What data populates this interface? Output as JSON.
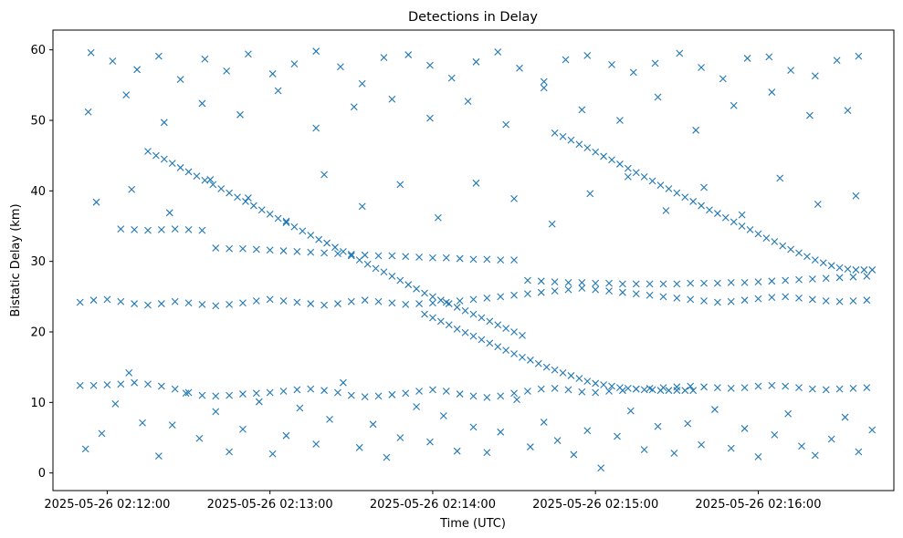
{
  "chart_data": {
    "type": "scatter",
    "title": "Detections in Delay",
    "xlabel": "Time (UTC)",
    "ylabel": "Bistatic Delay (km)",
    "x_type": "time",
    "xlim": [
      "2025-05-26 02:11:40",
      "2025-05-26 02:16:50"
    ],
    "ylim": [
      -2.5,
      62.8
    ],
    "xticks": [
      {
        "value": "2025-05-26 02:12:00",
        "label": "2025-05-26 02:12:00"
      },
      {
        "value": "2025-05-26 02:13:00",
        "label": "2025-05-26 02:13:00"
      },
      {
        "value": "2025-05-26 02:14:00",
        "label": "2025-05-26 02:14:00"
      },
      {
        "value": "2025-05-26 02:15:00",
        "label": "2025-05-26 02:15:00"
      },
      {
        "value": "2025-05-26 02:16:00",
        "label": "2025-05-26 02:16:00"
      }
    ],
    "yticks": [
      0,
      10,
      20,
      30,
      40,
      50,
      60
    ],
    "marker": "x",
    "color": "#1f77b4",
    "grid": false,
    "legend": "none",
    "series": [
      {
        "name": "",
        "x": [
          "02:12:15",
          "02:12:18",
          "02:12:21",
          "02:12:24",
          "02:12:27",
          "02:12:30",
          "02:12:33",
          "02:12:36",
          "02:12:39",
          "02:12:42",
          "02:12:45",
          "02:12:48",
          "02:12:51",
          "02:12:54",
          "02:12:57",
          "02:13:00",
          "02:13:03",
          "02:13:06",
          "02:13:09",
          "02:13:12",
          "02:13:15",
          "02:13:18",
          "02:13:21",
          "02:13:24",
          "02:13:27",
          "02:13:30",
          "02:13:33",
          "02:13:36",
          "02:13:39",
          "02:13:42",
          "02:13:45",
          "02:13:48",
          "02:13:51",
          "02:13:54",
          "02:13:57",
          "02:14:00",
          "02:14:03",
          "02:14:06",
          "02:14:09",
          "02:14:12",
          "02:14:15",
          "02:14:18",
          "02:14:21",
          "02:14:24",
          "02:14:27",
          "02:14:30",
          "02:14:33",
          "02:13:57",
          "02:14:00",
          "02:14:03",
          "02:14:06",
          "02:14:09",
          "02:14:12",
          "02:14:15",
          "02:14:18",
          "02:14:21",
          "02:14:24",
          "02:14:27",
          "02:14:30",
          "02:14:33",
          "02:14:36",
          "02:14:39",
          "02:14:42",
          "02:14:45",
          "02:14:48",
          "02:14:51",
          "02:14:54",
          "02:14:57",
          "02:15:00",
          "02:15:03",
          "02:15:06",
          "02:15:09",
          "02:15:12",
          "02:15:15",
          "02:15:18",
          "02:15:21",
          "02:15:24",
          "02:15:27",
          "02:15:30",
          "02:15:33",
          "02:15:36",
          "02:14:45",
          "02:14:48",
          "02:14:51",
          "02:14:54",
          "02:14:57",
          "02:15:00",
          "02:15:03",
          "02:15:06",
          "02:15:09",
          "02:15:12",
          "02:15:15",
          "02:15:18",
          "02:15:21",
          "02:15:24",
          "02:15:27",
          "02:15:30",
          "02:15:33",
          "02:15:36",
          "02:15:39",
          "02:15:42",
          "02:15:45",
          "02:15:48",
          "02:15:51",
          "02:15:54",
          "02:15:57",
          "02:16:00",
          "02:16:03",
          "02:16:06",
          "02:16:09",
          "02:16:12",
          "02:16:15",
          "02:16:18",
          "02:16:21",
          "02:16:24",
          "02:16:27",
          "02:16:30",
          "02:16:33",
          "02:16:36",
          "02:16:39",
          "02:16:42",
          "02:11:50",
          "02:11:55",
          "02:12:00",
          "02:12:05",
          "02:12:10",
          "02:12:15",
          "02:12:20",
          "02:12:25",
          "02:12:30",
          "02:12:35",
          "02:12:40",
          "02:12:45",
          "02:12:50",
          "02:12:55",
          "02:13:00",
          "02:13:05",
          "02:13:10",
          "02:13:15",
          "02:13:20",
          "02:13:25",
          "02:13:30",
          "02:13:35",
          "02:13:40",
          "02:13:45",
          "02:13:50",
          "02:13:55",
          "02:14:00",
          "02:14:05",
          "02:14:10",
          "02:14:15",
          "02:14:20",
          "02:14:25",
          "02:14:30",
          "02:14:35",
          "02:14:40",
          "02:14:45",
          "02:14:50",
          "02:14:55",
          "02:15:00",
          "02:15:05",
          "02:15:10",
          "02:15:15",
          "02:15:20",
          "02:15:25",
          "02:15:30",
          "02:15:35",
          "02:15:40",
          "02:15:45",
          "02:15:50",
          "02:15:55",
          "02:16:00",
          "02:16:05",
          "02:16:10",
          "02:16:15",
          "02:16:20",
          "02:16:25",
          "02:16:30",
          "02:16:35",
          "02:16:40",
          "02:11:50",
          "02:11:55",
          "02:12:00",
          "02:12:05",
          "02:12:10",
          "02:12:15",
          "02:12:20",
          "02:12:25",
          "02:12:30",
          "02:12:35",
          "02:12:40",
          "02:12:45",
          "02:12:50",
          "02:12:55",
          "02:13:00",
          "02:13:05",
          "02:13:10",
          "02:13:15",
          "02:13:20",
          "02:13:25",
          "02:13:30",
          "02:13:35",
          "02:13:40",
          "02:13:45",
          "02:13:50",
          "02:13:55",
          "02:14:00",
          "02:14:05",
          "02:14:10",
          "02:14:15",
          "02:14:20",
          "02:14:25",
          "02:14:30",
          "02:14:35",
          "02:14:40",
          "02:14:45",
          "02:14:50",
          "02:14:55",
          "02:15:00",
          "02:15:05",
          "02:15:10",
          "02:15:15",
          "02:15:20",
          "02:15:25",
          "02:15:30",
          "02:15:35",
          "02:15:40",
          "02:15:45",
          "02:15:50",
          "02:15:55",
          "02:16:00",
          "02:16:05",
          "02:16:10",
          "02:16:15",
          "02:16:20",
          "02:16:25",
          "02:16:30",
          "02:16:35",
          "02:16:40",
          "02:12:05",
          "02:12:10",
          "02:12:15",
          "02:12:20",
          "02:12:25",
          "02:12:30",
          "02:12:35",
          "02:12:40",
          "02:12:45",
          "02:12:50",
          "02:12:55",
          "02:13:00",
          "02:13:05",
          "02:13:10",
          "02:13:15",
          "02:13:20",
          "02:13:25",
          "02:13:30",
          "02:13:35",
          "02:13:40",
          "02:13:45",
          "02:13:50",
          "02:13:55",
          "02:14:00",
          "02:14:05",
          "02:14:10",
          "02:14:15",
          "02:14:20",
          "02:14:25",
          "02:14:30",
          "02:14:35",
          "02:14:40",
          "02:14:45",
          "02:14:50",
          "02:14:55",
          "02:15:00",
          "02:15:05",
          "02:15:10",
          "02:15:15",
          "02:15:20",
          "02:15:25",
          "02:15:30",
          "02:15:35",
          "02:15:40",
          "02:15:45",
          "02:15:50",
          "02:15:55",
          "02:16:00",
          "02:16:05",
          "02:16:10",
          "02:16:15",
          "02:16:20",
          "02:16:25",
          "02:16:30",
          "02:16:35",
          "02:16:40",
          "02:11:52",
          "02:11:58",
          "02:12:03",
          "02:12:08",
          "02:12:13",
          "02:12:19",
          "02:12:24",
          "02:12:29",
          "02:12:34",
          "02:12:40",
          "02:12:45",
          "02:12:50",
          "02:12:56",
          "02:13:01",
          "02:13:06",
          "02:13:11",
          "02:13:17",
          "02:13:22",
          "02:13:27",
          "02:13:33",
          "02:13:38",
          "02:13:43",
          "02:13:48",
          "02:13:54",
          "02:13:59",
          "02:14:04",
          "02:14:09",
          "02:14:15",
          "02:14:20",
          "02:14:25",
          "02:14:31",
          "02:14:36",
          "02:14:41",
          "02:14:46",
          "02:14:52",
          "02:14:57",
          "02:15:02",
          "02:15:08",
          "02:15:13",
          "02:15:18",
          "02:15:23",
          "02:15:29",
          "02:15:34",
          "02:15:39",
          "02:15:44",
          "02:15:50",
          "02:15:55",
          "02:16:00",
          "02:16:06",
          "02:16:11",
          "02:16:16",
          "02:16:21",
          "02:16:27",
          "02:16:32",
          "02:16:37",
          "02:16:42",
          "02:11:54",
          "02:12:02",
          "02:12:11",
          "02:12:19",
          "02:12:27",
          "02:12:36",
          "02:12:44",
          "02:12:52",
          "02:13:01",
          "02:13:09",
          "02:13:17",
          "02:13:26",
          "02:13:34",
          "02:13:42",
          "02:13:51",
          "02:13:59",
          "02:14:07",
          "02:14:16",
          "02:14:24",
          "02:14:32",
          "02:14:41",
          "02:14:49",
          "02:14:57",
          "02:15:06",
          "02:15:14",
          "02:15:22",
          "02:15:31",
          "02:15:39",
          "02:15:47",
          "02:15:56",
          "02:16:04",
          "02:16:12",
          "02:16:21",
          "02:16:29",
          "02:16:37",
          "02:11:53",
          "02:12:07",
          "02:12:21",
          "02:12:35",
          "02:12:49",
          "02:13:03",
          "02:13:17",
          "02:13:31",
          "02:13:45",
          "02:13:59",
          "02:14:13",
          "02:14:27",
          "02:14:41",
          "02:14:55",
          "02:15:09",
          "02:15:23",
          "02:15:37",
          "02:15:51",
          "02:16:05",
          "02:16:19",
          "02:16:33",
          "02:11:56",
          "02:12:09",
          "02:12:23",
          "02:12:38",
          "02:12:52",
          "02:13:06",
          "02:13:20",
          "02:13:34",
          "02:13:48",
          "02:14:02",
          "02:14:16",
          "02:14:30",
          "02:14:44",
          "02:14:58",
          "02:15:12",
          "02:15:26",
          "02:15:40",
          "02:15:54",
          "02:16:08",
          "02:16:22",
          "02:16:36"
        ],
        "y": [
          45.6,
          45.0,
          44.5,
          43.9,
          43.3,
          42.7,
          42.1,
          41.5,
          40.9,
          40.3,
          39.7,
          39.1,
          38.5,
          37.9,
          37.3,
          36.7,
          36.1,
          35.5,
          34.9,
          34.3,
          33.7,
          33.1,
          32.6,
          32.0,
          31.4,
          30.8,
          30.2,
          29.6,
          29.0,
          28.5,
          27.9,
          27.3,
          26.7,
          26.1,
          25.5,
          25.0,
          24.5,
          24.0,
          23.5,
          23.0,
          22.5,
          22.0,
          21.5,
          21.0,
          20.5,
          20.0,
          19.5,
          22.5,
          22.0,
          21.5,
          21.0,
          20.4,
          19.9,
          19.4,
          18.9,
          18.4,
          17.9,
          17.4,
          16.9,
          16.4,
          16.0,
          15.5,
          15.0,
          14.6,
          14.2,
          13.8,
          13.4,
          13.0,
          12.7,
          12.5,
          12.3,
          12.1,
          12.0,
          11.9,
          11.8,
          11.8,
          11.7,
          11.7,
          11.7,
          11.7,
          11.7,
          48.2,
          47.7,
          47.2,
          46.6,
          46.1,
          45.5,
          44.9,
          44.4,
          43.8,
          43.2,
          42.6,
          42.0,
          41.4,
          40.8,
          40.3,
          39.7,
          39.1,
          38.5,
          37.9,
          37.3,
          36.8,
          36.2,
          35.6,
          35.0,
          34.5,
          33.9,
          33.3,
          32.8,
          32.2,
          31.7,
          31.2,
          30.7,
          30.2,
          29.8,
          29.4,
          29.1,
          28.9,
          28.8,
          28.8,
          28.8,
          12.4,
          12.4,
          12.5,
          12.6,
          12.8,
          12.6,
          12.3,
          11.9,
          11.4,
          11.0,
          10.9,
          11.0,
          11.2,
          11.3,
          11.4,
          11.6,
          11.8,
          11.9,
          11.7,
          11.4,
          11.0,
          10.8,
          10.9,
          11.1,
          11.3,
          11.6,
          11.8,
          11.6,
          11.2,
          10.9,
          10.7,
          10.9,
          11.3,
          11.6,
          11.9,
          12.0,
          11.8,
          11.5,
          11.4,
          11.6,
          11.7,
          11.9,
          12.0,
          12.1,
          12.2,
          12.3,
          12.2,
          12.1,
          12.0,
          12.1,
          12.3,
          12.4,
          12.3,
          12.1,
          11.9,
          11.8,
          11.9,
          12.0,
          12.1,
          24.2,
          24.5,
          24.6,
          24.3,
          24.0,
          23.8,
          24.0,
          24.3,
          24.1,
          23.9,
          23.7,
          23.9,
          24.1,
          24.4,
          24.6,
          24.4,
          24.2,
          24.0,
          23.8,
          24.0,
          24.3,
          24.5,
          24.3,
          24.1,
          23.9,
          24.0,
          24.1,
          24.2,
          24.4,
          24.6,
          24.8,
          25.0,
          25.2,
          25.4,
          25.6,
          25.8,
          26.0,
          26.2,
          26.0,
          25.8,
          25.6,
          25.4,
          25.2,
          25.0,
          24.8,
          24.6,
          24.4,
          24.2,
          24.3,
          24.5,
          24.7,
          24.9,
          25.0,
          24.8,
          24.6,
          24.4,
          24.3,
          24.4,
          24.5,
          34.6,
          34.5,
          34.4,
          34.5,
          34.6,
          34.5,
          34.4,
          31.9,
          31.8,
          31.8,
          31.7,
          31.6,
          31.5,
          31.4,
          31.3,
          31.2,
          31.1,
          31.0,
          30.9,
          30.8,
          30.8,
          30.7,
          30.6,
          30.5,
          30.5,
          30.4,
          30.3,
          30.3,
          30.2,
          30.2,
          27.3,
          27.2,
          27.1,
          27.0,
          27.0,
          26.9,
          26.9,
          26.8,
          26.8,
          26.8,
          26.8,
          26.8,
          26.9,
          26.9,
          26.9,
          27.0,
          27.0,
          27.1,
          27.2,
          27.3,
          27.4,
          27.5,
          27.6,
          27.7,
          27.8,
          27.9,
          3.4,
          5.6,
          9.8,
          14.2,
          7.1,
          2.4,
          6.8,
          11.3,
          4.9,
          8.7,
          3.0,
          6.2,
          10.1,
          2.7,
          5.3,
          9.2,
          4.1,
          7.6,
          12.8,
          3.6,
          6.9,
          2.2,
          5.0,
          9.4,
          4.4,
          8.1,
          3.1,
          6.5,
          2.9,
          5.8,
          10.4,
          3.7,
          7.2,
          4.6,
          2.6,
          6.0,
          0.7,
          5.2,
          8.8,
          3.3,
          6.6,
          2.8,
          7.0,
          4.0,
          9.0,
          3.5,
          6.3,
          2.3,
          5.4,
          8.4,
          3.8,
          2.5,
          4.8,
          7.9,
          3.0,
          6.1,
          59.6,
          58.4,
          57.2,
          59.1,
          55.8,
          58.7,
          57.0,
          59.4,
          56.6,
          58.0,
          59.8,
          57.6,
          55.2,
          58.9,
          59.3,
          57.8,
          56.0,
          58.3,
          59.7,
          57.4,
          55.5,
          58.6,
          59.2,
          57.9,
          56.8,
          58.1,
          59.5,
          57.5,
          55.9,
          58.8,
          59.0,
          57.1,
          56.3,
          58.5,
          59.1,
          51.2,
          53.6,
          49.7,
          52.4,
          50.8,
          54.2,
          48.9,
          51.9,
          53.0,
          50.3,
          52.7,
          49.4,
          54.6,
          51.5,
          50.0,
          53.3,
          48.6,
          52.1,
          54.0,
          50.7,
          51.4,
          38.4,
          40.2,
          36.9,
          41.6,
          39.0,
          35.7,
          42.3,
          37.8,
          40.9,
          36.2,
          41.1,
          38.9,
          35.3,
          39.6,
          42.0,
          37.2,
          40.5,
          36.6,
          41.8,
          38.1,
          39.3
        ]
      }
    ]
  }
}
